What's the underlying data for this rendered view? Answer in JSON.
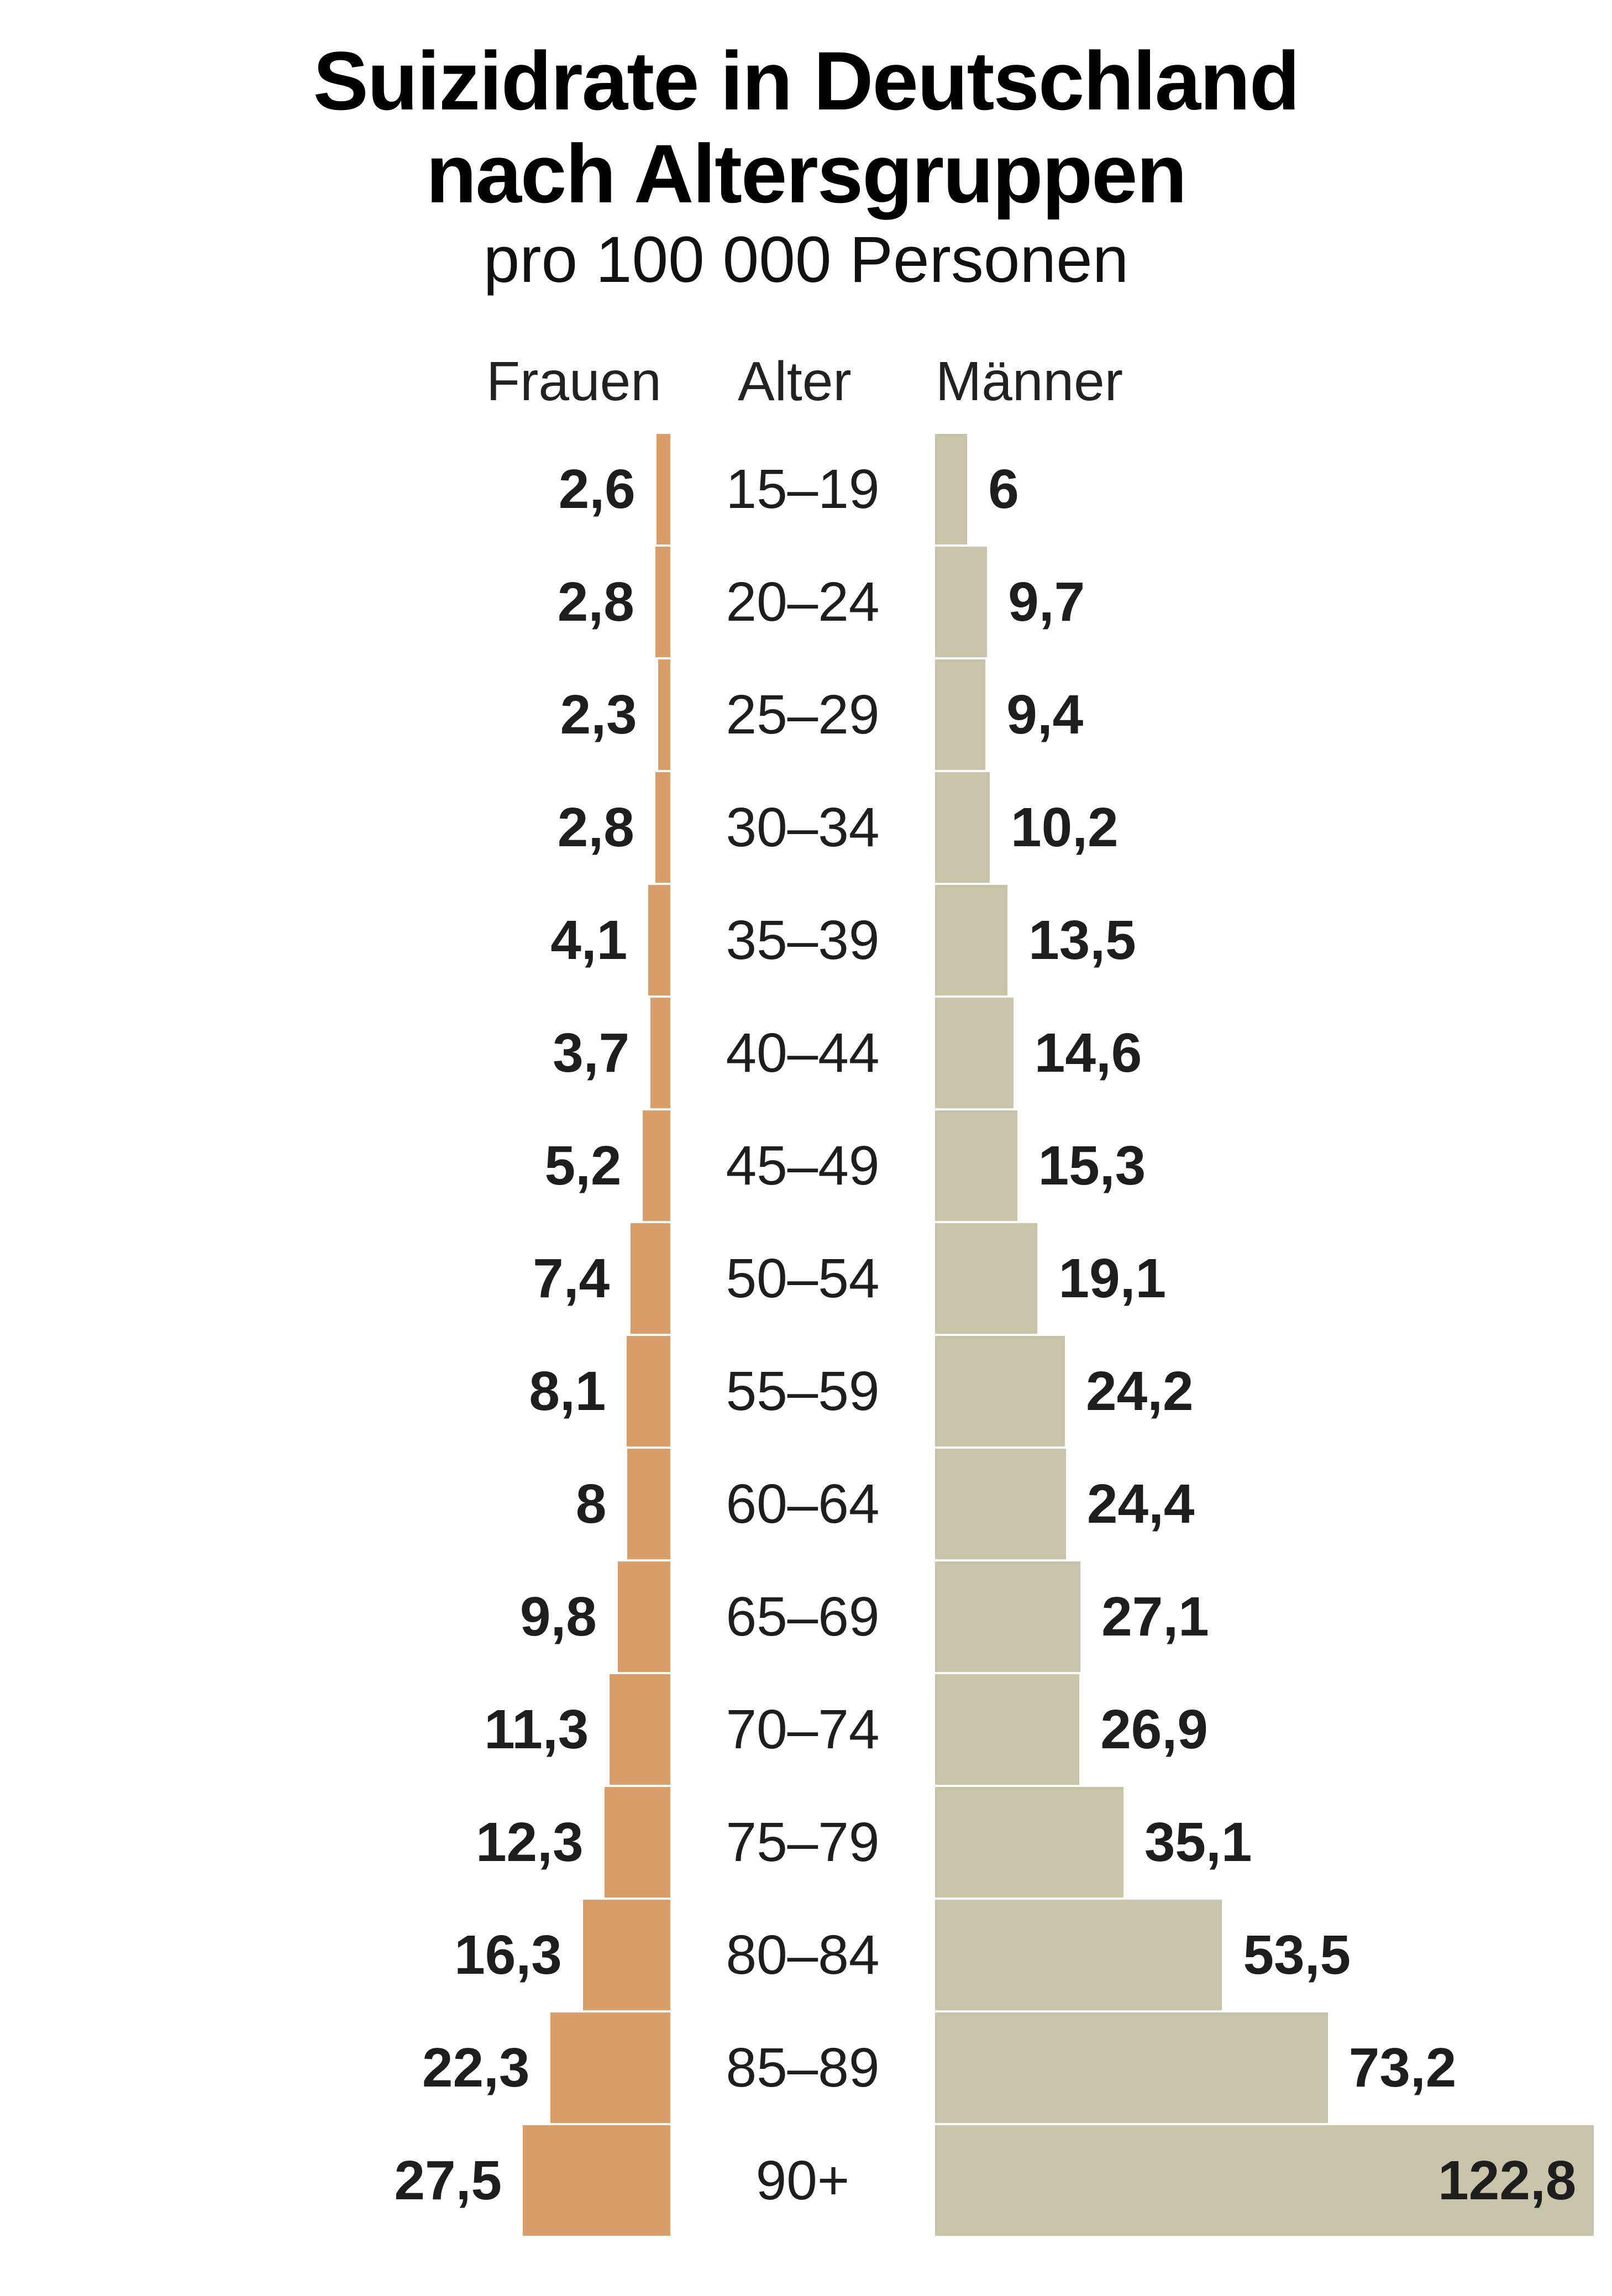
{
  "header": {
    "title_line1": "Suizidrate in Deutschland",
    "title_line2": "nach Altersgruppen",
    "subtitle": "pro 100 000 Personen"
  },
  "columns": {
    "women": "Frauen",
    "age": "Alter",
    "men": "Männer"
  },
  "colors": {
    "women": "#D99E67",
    "men": "#C9C3AA",
    "text": "#1e1e1e"
  },
  "rows": [
    {
      "age": "15–19",
      "women": "2,6",
      "men": "6"
    },
    {
      "age": "20–24",
      "women": "2,8",
      "men": "9,7"
    },
    {
      "age": "25–29",
      "women": "2,3",
      "men": "9,4"
    },
    {
      "age": "30–34",
      "women": "2,8",
      "men": "10,2"
    },
    {
      "age": "35–39",
      "women": "4,1",
      "men": "13,5"
    },
    {
      "age": "40–44",
      "women": "3,7",
      "men": "14,6"
    },
    {
      "age": "45–49",
      "women": "5,2",
      "men": "15,3"
    },
    {
      "age": "50–54",
      "women": "7,4",
      "men": "19,1"
    },
    {
      "age": "55–59",
      "women": "8,1",
      "men": "24,2"
    },
    {
      "age": "60–64",
      "women": "8",
      "men": "24,4"
    },
    {
      "age": "65–69",
      "women": "9,8",
      "men": "27,1"
    },
    {
      "age": "70–74",
      "women": "11,3",
      "men": "26,9"
    },
    {
      "age": "75–79",
      "women": "12,3",
      "men": "35,1"
    },
    {
      "age": "80–84",
      "women": "16,3",
      "men": "53,5"
    },
    {
      "age": "85–89",
      "women": "22,3",
      "men": "73,2"
    },
    {
      "age": "90+",
      "women": "27,5",
      "men": "122,8"
    }
  ],
  "chart_data": {
    "type": "bar",
    "orientation": "horizontal",
    "layout": "population-pyramid (butterfly)",
    "title": "Suizidrate in Deutschland nach Altersgruppen",
    "subtitle": "pro 100 000 Personen",
    "xlabel": "",
    "ylabel": "Alter",
    "grid": false,
    "legend": "column headers: Frauen (left), Männer (right)",
    "categories": [
      "15–19",
      "20–24",
      "25–29",
      "30–34",
      "35–39",
      "40–44",
      "45–49",
      "50–54",
      "55–59",
      "60–64",
      "65–69",
      "70–74",
      "75–79",
      "80–84",
      "85–89",
      "90+"
    ],
    "series": [
      {
        "name": "Frauen",
        "color": "#D99E67",
        "direction": "left",
        "values": [
          2.6,
          2.8,
          2.3,
          2.8,
          4.1,
          3.7,
          5.2,
          7.4,
          8.1,
          8.0,
          9.8,
          11.3,
          12.3,
          16.3,
          22.3,
          27.5
        ]
      },
      {
        "name": "Männer",
        "color": "#C9C3AA",
        "direction": "right",
        "values": [
          6.0,
          9.7,
          9.4,
          10.2,
          13.5,
          14.6,
          15.3,
          19.1,
          24.2,
          24.4,
          27.1,
          26.9,
          35.1,
          53.5,
          73.2,
          122.8
        ]
      }
    ],
    "value_labels": "shown, German decimal comma"
  }
}
